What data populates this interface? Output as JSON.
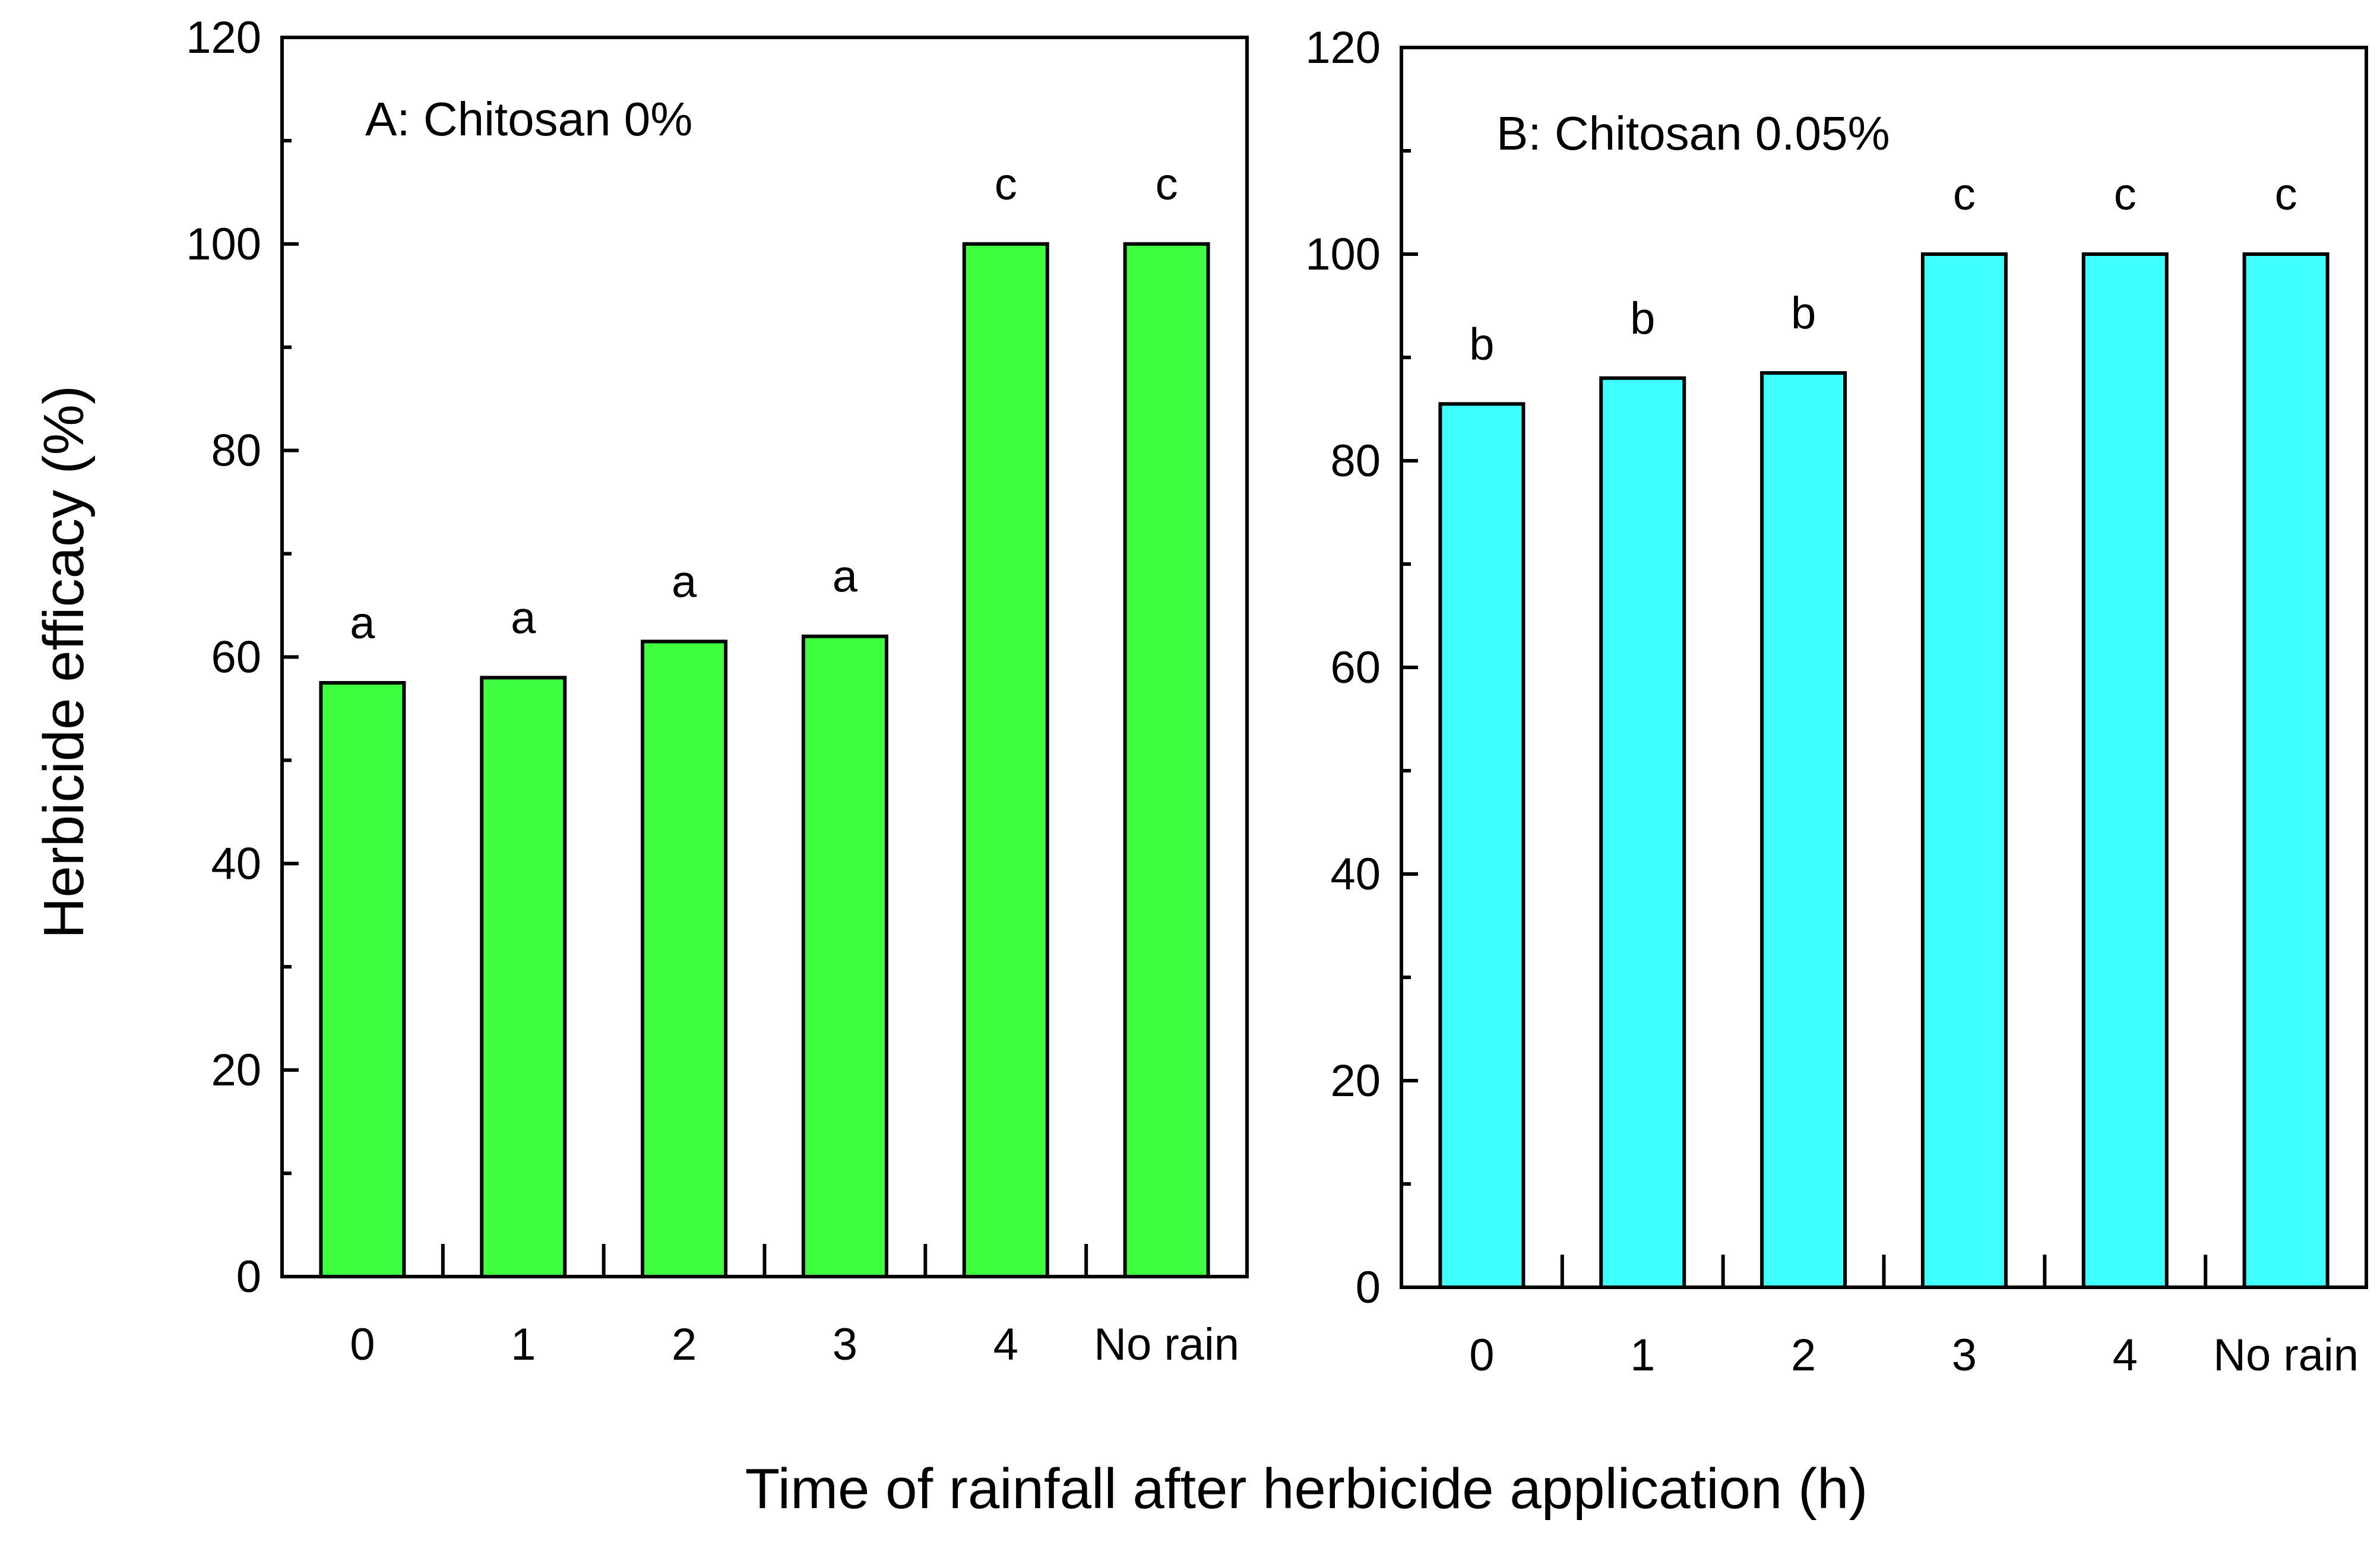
{
  "chart_data": [
    {
      "type": "bar",
      "title": "A: Chitosan 0%",
      "categories": [
        "0",
        "1",
        "2",
        "3",
        "4",
        "No rain"
      ],
      "values": [
        57.5,
        58,
        61.5,
        62,
        100,
        100
      ],
      "letters": [
        "a",
        "a",
        "a",
        "a",
        "c",
        "c"
      ],
      "bar_color": "#40ff40",
      "ylim": [
        0,
        120
      ],
      "yticks": [
        0,
        20,
        40,
        60,
        80,
        100,
        120
      ],
      "ylabel": "Herbicide efficacy  (%)"
    },
    {
      "type": "bar",
      "title": "B: Chitosan 0.05%",
      "categories": [
        "0",
        "1",
        "2",
        "3",
        "4",
        "No rain"
      ],
      "values": [
        85.5,
        88,
        88.5,
        100,
        100,
        100
      ],
      "letters": [
        "b",
        "b",
        "b",
        "c",
        "c",
        "c"
      ],
      "bar_color": "#40ffff",
      "ylim": [
        0,
        120
      ],
      "yticks": [
        0,
        20,
        40,
        60,
        80,
        100,
        120
      ]
    }
  ],
  "xlabel": "Time of rainfall after herbicide application (h)"
}
